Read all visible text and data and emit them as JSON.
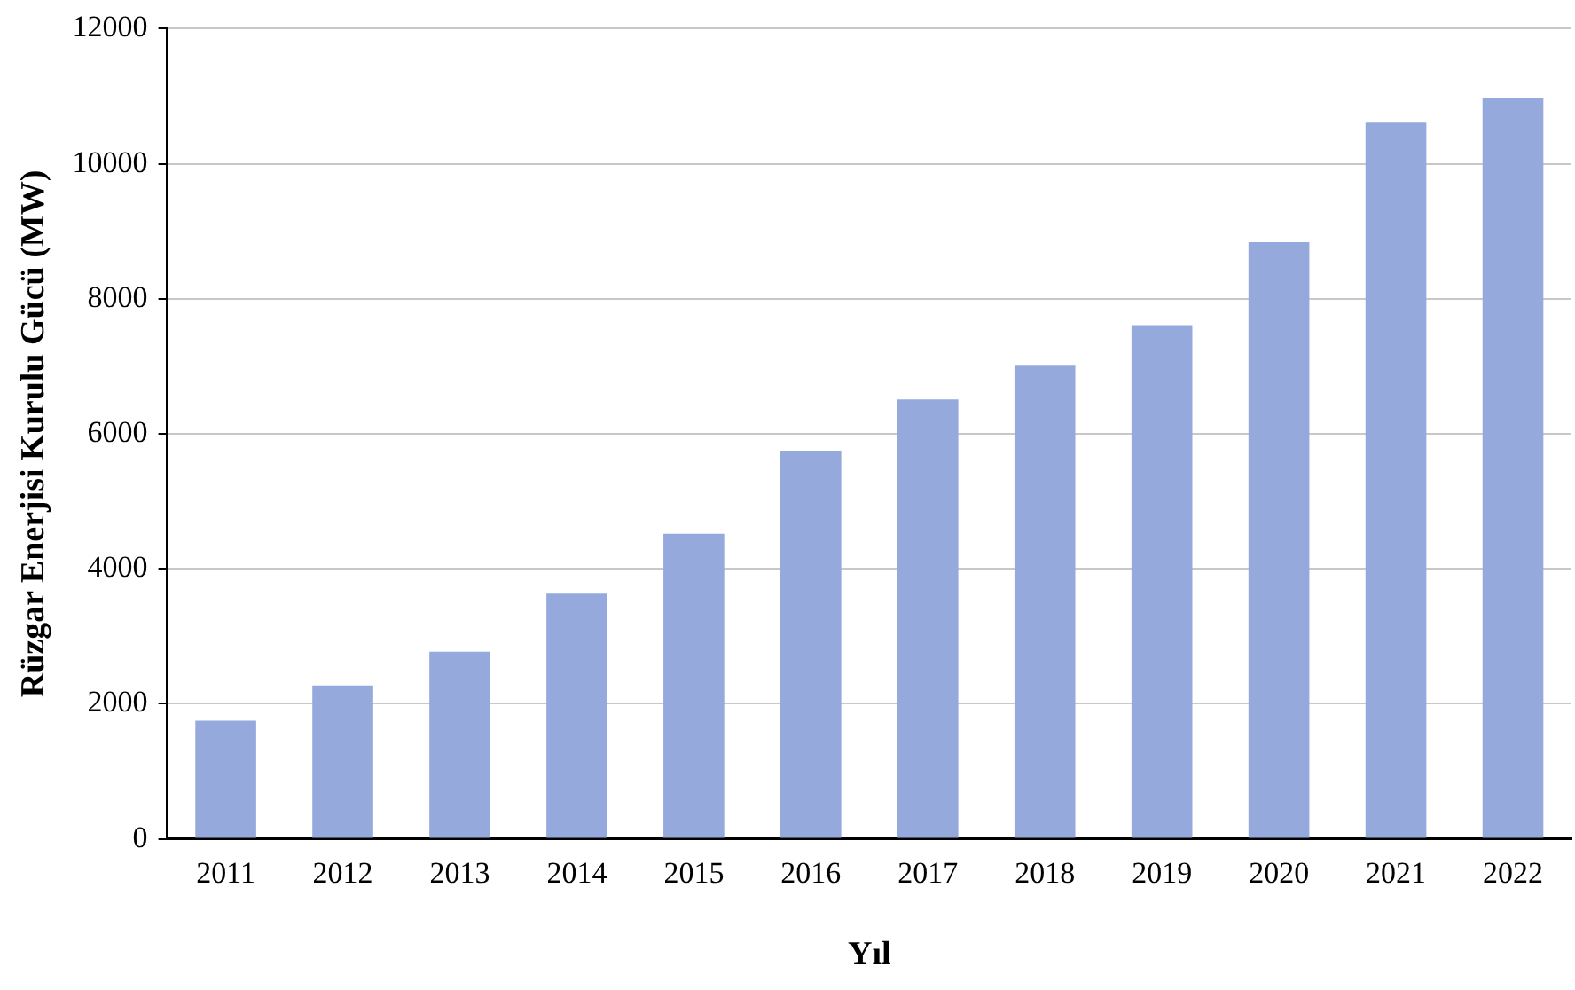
{
  "chart_data": {
    "type": "bar",
    "xlabel": "Yıl",
    "ylabel": "Rüzgar Enerjisi Kurulu Gücü (MW)",
    "categories": [
      "2011",
      "2012",
      "2013",
      "2014",
      "2015",
      "2016",
      "2017",
      "2018",
      "2019",
      "2020",
      "2021",
      "2022"
    ],
    "values": [
      1750,
      2270,
      2770,
      3630,
      4520,
      5750,
      6510,
      7010,
      7610,
      8840,
      10610,
      10980
    ],
    "color": "#95a9dc",
    "ylim": [
      0,
      12000
    ],
    "yticks": [
      0,
      2000,
      4000,
      6000,
      8000,
      10000,
      12000
    ],
    "grid": "y",
    "legend": false
  }
}
